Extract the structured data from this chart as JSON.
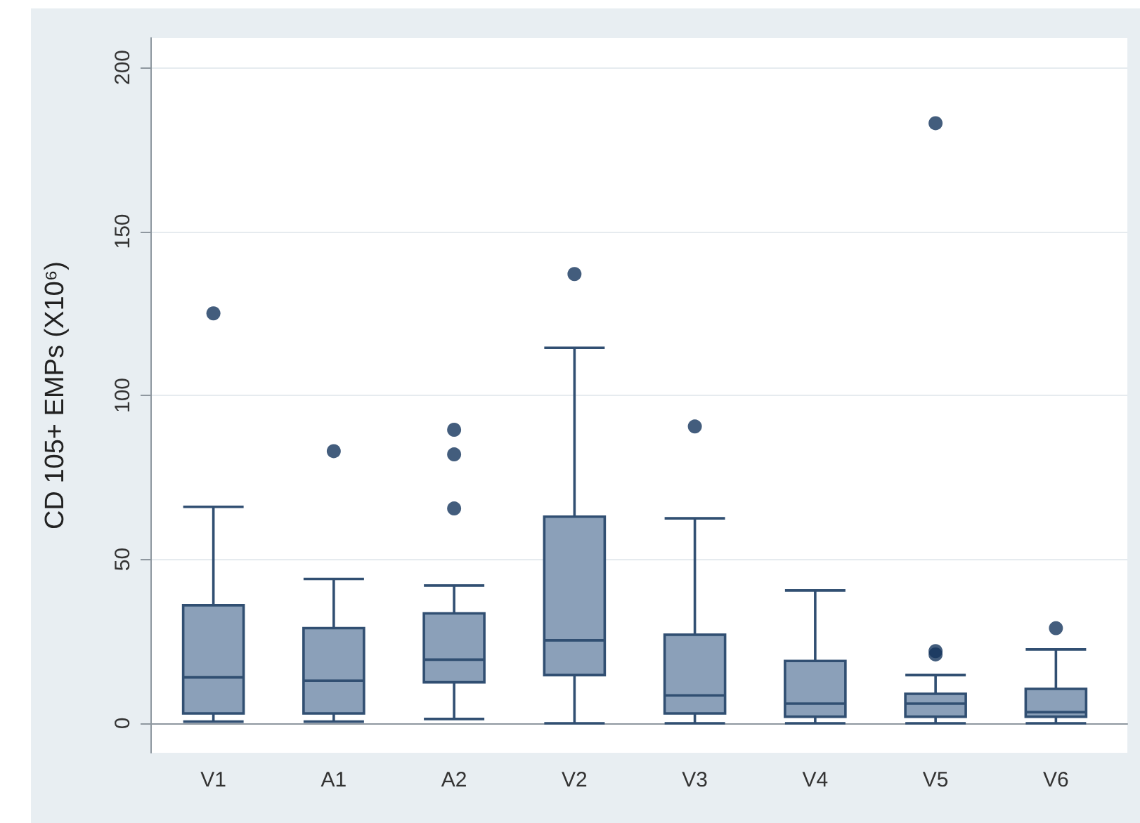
{
  "chart_data": {
    "type": "box",
    "ylabel": "CD 105+ EMPs (X10⁶)",
    "categories": [
      "V1",
      "A1",
      "A2",
      "V2",
      "V3",
      "V4",
      "V5",
      "V6"
    ],
    "color": "#8ba0b9",
    "boxes": [
      {
        "low": 0.5,
        "q1": 3,
        "median": 14,
        "q3": 36,
        "high": 66,
        "outliers": [
          125
        ]
      },
      {
        "low": 0.5,
        "q1": 3,
        "median": 13,
        "q3": 29,
        "high": 44,
        "outliers": [
          83
        ]
      },
      {
        "low": 1.3,
        "q1": 12.5,
        "median": 19.4,
        "q3": 33.5,
        "high": 42,
        "outliers": [
          65.5,
          82,
          89.5
        ]
      },
      {
        "low": 0,
        "q1": 14.7,
        "median": 25.3,
        "q3": 63,
        "high": 114.5,
        "outliers": [
          137
        ]
      },
      {
        "low": 0,
        "q1": 3,
        "median": 8.5,
        "q3": 27,
        "high": 62.5,
        "outliers": [
          90.5
        ]
      },
      {
        "low": 0,
        "q1": 2,
        "median": 6,
        "q3": 19,
        "high": 40.5
      },
      {
        "low": 0,
        "q1": 2,
        "median": 6,
        "q3": 9,
        "high": 14.7,
        "outliers": [
          21,
          22,
          183
        ]
      },
      {
        "low": 0,
        "q1": 2,
        "median": 3.4,
        "q3": 10.5,
        "high": 22.5,
        "outliers": [
          29
        ]
      }
    ],
    "ylim": [
      -9,
      209
    ],
    "yticks": [
      0,
      50,
      100,
      150,
      200
    ],
    "grid": "y"
  }
}
